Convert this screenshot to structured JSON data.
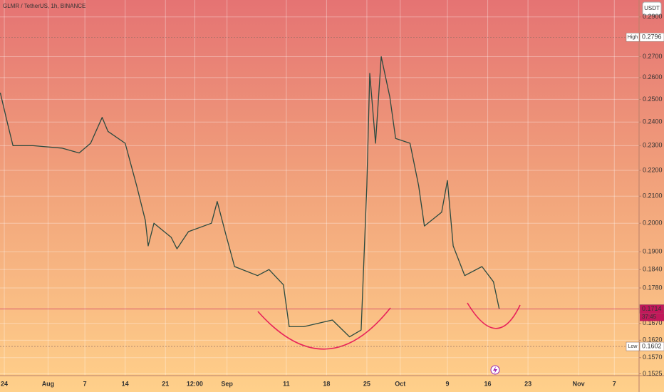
{
  "chart_data": {
    "type": "line",
    "title": "GLMR / TetherUS, 1h, BINANCE",
    "currency": "USDT",
    "log_scale": true,
    "grid": true,
    "color": "#2b4a3f",
    "x": [
      -0.7,
      0.5,
      1.5,
      5,
      10,
      13,
      15,
      17,
      18,
      21,
      23,
      24.5,
      25,
      26,
      29,
      30,
      32,
      36,
      37,
      38.5,
      40,
      44,
      46,
      48.5,
      49.5,
      52,
      57,
      60,
      62,
      63,
      63.5,
      64.5,
      65.5,
      67,
      68,
      70.5,
      72,
      73,
      76,
      77,
      78,
      80,
      83,
      85,
      86
    ],
    "values": [
      0.253,
      0.24,
      0.23,
      0.23,
      0.229,
      0.227,
      0.231,
      0.242,
      0.236,
      0.231,
      0.214,
      0.201,
      0.192,
      0.2,
      0.195,
      0.191,
      0.197,
      0.2,
      0.208,
      0.196,
      0.185,
      0.182,
      0.184,
      0.179,
      0.166,
      0.166,
      0.168,
      0.163,
      0.165,
      0.214,
      0.262,
      0.231,
      0.27,
      0.251,
      0.233,
      0.231,
      0.214,
      0.199,
      0.204,
      0.216,
      0.192,
      0.182,
      0.185,
      0.18,
      0.1714
    ],
    "xlim": [
      -0.75,
      110.3
    ],
    "ylim": [
      0.152,
      0.299
    ],
    "xticks": [
      {
        "value": 0,
        "label": "24"
      },
      {
        "value": 7.6,
        "label": "Aug"
      },
      {
        "value": 14,
        "label": "7"
      },
      {
        "value": 21,
        "label": "14"
      },
      {
        "value": 28,
        "label": "21"
      },
      {
        "value": 33.1,
        "label": "12:00"
      },
      {
        "value": 38.7,
        "label": "Sep"
      },
      {
        "value": 49,
        "label": "11"
      },
      {
        "value": 56,
        "label": "18"
      },
      {
        "value": 63,
        "label": "25"
      },
      {
        "value": 68.8,
        "label": "Oct"
      },
      {
        "value": 77,
        "label": "9"
      },
      {
        "value": 84,
        "label": "16"
      },
      {
        "value": 91,
        "label": "23"
      },
      {
        "value": 99.8,
        "label": "Nov"
      },
      {
        "value": 106,
        "label": "7"
      }
    ],
    "yticks": [
      {
        "value": 0.29,
        "label": "0.2900"
      },
      {
        "value": 0.27,
        "label": "0.2700"
      },
      {
        "value": 0.26,
        "label": "0.2600"
      },
      {
        "value": 0.25,
        "label": "0.2500"
      },
      {
        "value": 0.24,
        "label": "0.2400"
      },
      {
        "value": 0.23,
        "label": "0.2300"
      },
      {
        "value": 0.22,
        "label": "0.2200"
      },
      {
        "value": 0.21,
        "label": "0.2100"
      },
      {
        "value": 0.2,
        "label": "0.2000"
      },
      {
        "value": 0.19,
        "label": "0.1900"
      },
      {
        "value": 0.184,
        "label": "0.1840"
      },
      {
        "value": 0.178,
        "label": "0.1780"
      },
      {
        "value": 0.167,
        "label": "0.1670"
      },
      {
        "value": 0.162,
        "label": "0.1620"
      },
      {
        "value": 0.157,
        "label": "0.1570"
      },
      0.1525
    ],
    "high": {
      "label": "High",
      "value": 0.2796
    },
    "low": {
      "label": "Low",
      "value": 0.1602
    },
    "last": {
      "value": 0.1714,
      "countdown": "37:45"
    }
  }
}
